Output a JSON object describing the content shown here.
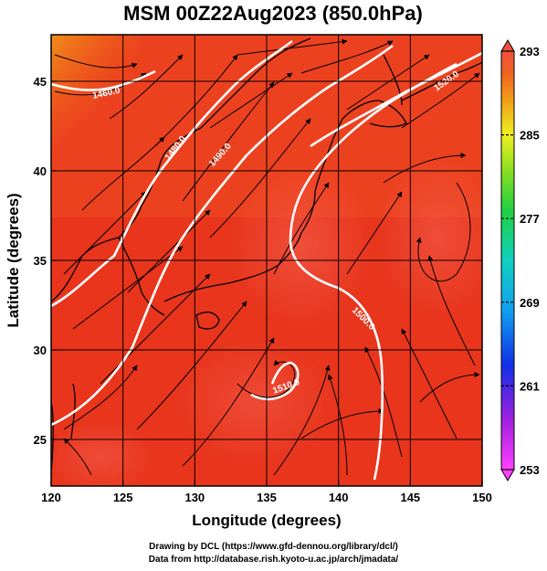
{
  "chart_data": {
    "type": "heatmap",
    "title": "MSM 00Z22Aug2023 (850.0hPa)",
    "xlabel": "Longitude (degrees)",
    "ylabel": "Latitude  (degrees)",
    "xlim": [
      120,
      150
    ],
    "ylim": [
      22.4,
      47.6
    ],
    "x_ticks": [
      120,
      125,
      130,
      135,
      140,
      145,
      150
    ],
    "y_ticks": [
      25,
      30,
      35,
      40,
      45
    ],
    "grid": true,
    "colorbar": {
      "range": [
        253,
        293
      ],
      "ticks": [
        293,
        285,
        277,
        269,
        261,
        253
      ],
      "placement": "right"
    },
    "contour_labels": [
      "1460.0",
      "1480.0",
      "1490.0",
      "1500.0",
      "1510.0",
      "1520.0"
    ],
    "overlays": [
      "streamlines",
      "coastlines",
      "geopotential-height-contours"
    ]
  },
  "credits": {
    "line1": "Drawing by DCL (https://www.gfd-dennou.org/library/dcl/)",
    "line2": "Data from http://database.rish.kyoto-u.ac.jp/arch/jmadata/"
  },
  "colors": {
    "warm_red": "#e8301c",
    "light_red": "#f06040",
    "orange": "#f07818",
    "yellow": "#e8e030",
    "contour": "#ffffff"
  }
}
